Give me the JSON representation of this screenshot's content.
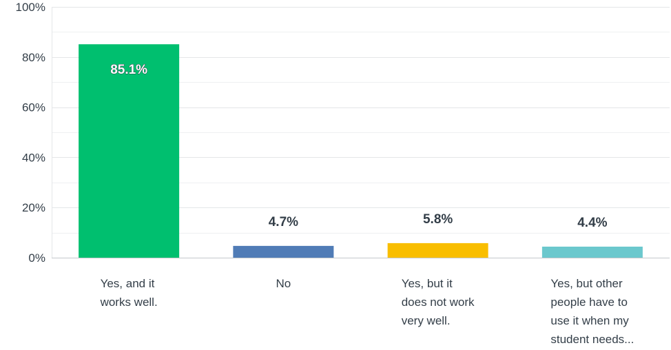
{
  "chart_data": {
    "type": "bar",
    "categories": [
      [
        "Yes, and it",
        "works well."
      ],
      [
        "No"
      ],
      [
        "Yes, but it",
        "does not work",
        "very well."
      ],
      [
        "Yes, but other",
        "people have to",
        "use it when my",
        "student needs..."
      ]
    ],
    "values": [
      85.1,
      4.7,
      5.8,
      4.4
    ],
    "value_labels": [
      "85.1%",
      "4.7%",
      "5.8%",
      "4.4%"
    ],
    "colors": [
      "#00bf6f",
      "#507cb6",
      "#f9be00",
      "#6bc8cd"
    ],
    "ylim": [
      0,
      100
    ],
    "yticks": [
      0,
      20,
      40,
      60,
      80,
      100
    ],
    "ytick_labels": [
      "0%",
      "20%",
      "40%",
      "60%",
      "80%",
      "100%"
    ],
    "title": "",
    "xlabel": "",
    "ylabel": "",
    "grid": true,
    "legend": "none"
  }
}
